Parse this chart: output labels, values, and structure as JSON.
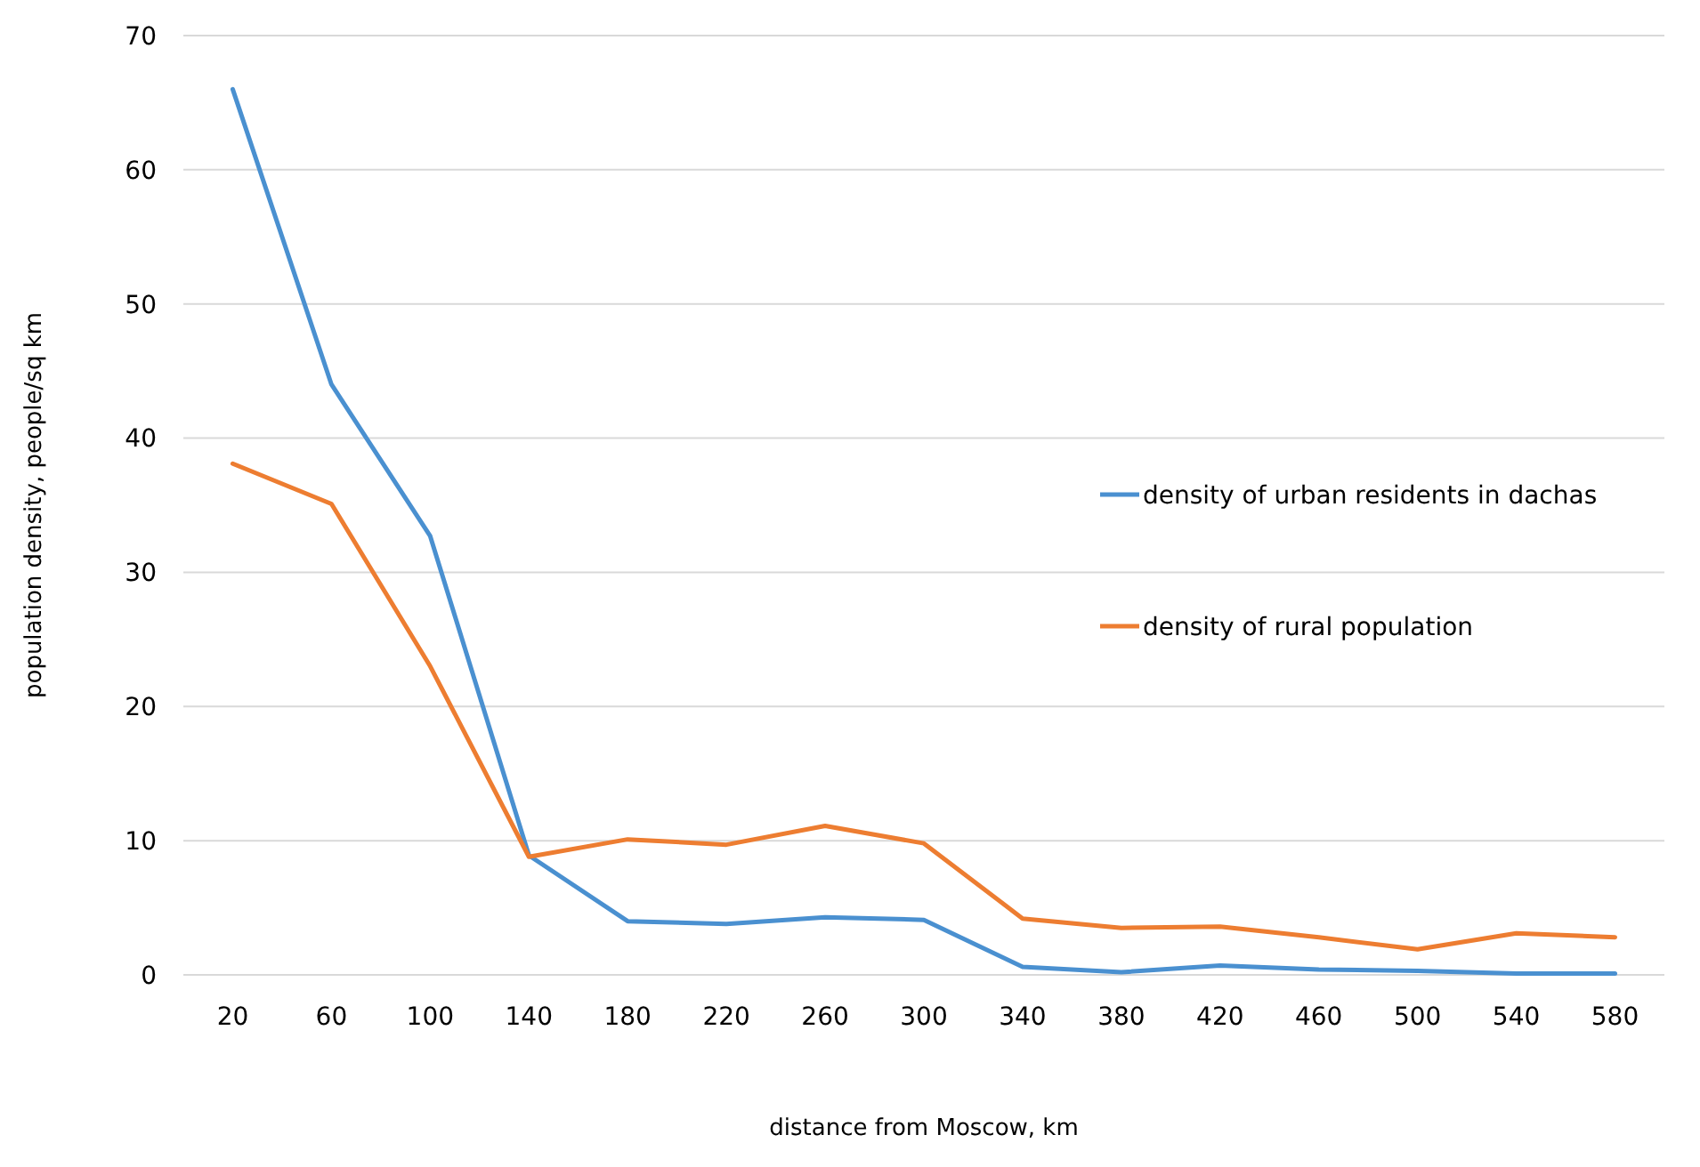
{
  "chart_data": {
    "type": "line",
    "xlabel": "distance from Moscow, km",
    "ylabel": "population density, people/sq km",
    "categories": [
      "20",
      "60",
      "100",
      "140",
      "180",
      "220",
      "260",
      "300",
      "340",
      "380",
      "420",
      "460",
      "500",
      "540",
      "580"
    ],
    "series": [
      {
        "name": "density of urban residents in dachas",
        "color": "#4a90d0",
        "values": [
          66,
          44,
          32.7,
          8.9,
          4.0,
          3.8,
          4.3,
          4.1,
          0.6,
          0.2,
          0.7,
          0.4,
          0.3,
          0.1,
          0.1
        ]
      },
      {
        "name": "density of rural population",
        "color": "#ed7d31",
        "values": [
          38.1,
          35.1,
          23,
          8.8,
          10.1,
          9.7,
          11.1,
          9.8,
          4.2,
          3.5,
          3.6,
          2.8,
          1.9,
          3.1,
          2.8
        ]
      }
    ],
    "ylim": [
      0,
      70
    ],
    "yticks": [
      0,
      10,
      20,
      30,
      40,
      50,
      60,
      70
    ],
    "grid": "y",
    "legend": "right",
    "marker": "none",
    "line_style": "solid"
  }
}
